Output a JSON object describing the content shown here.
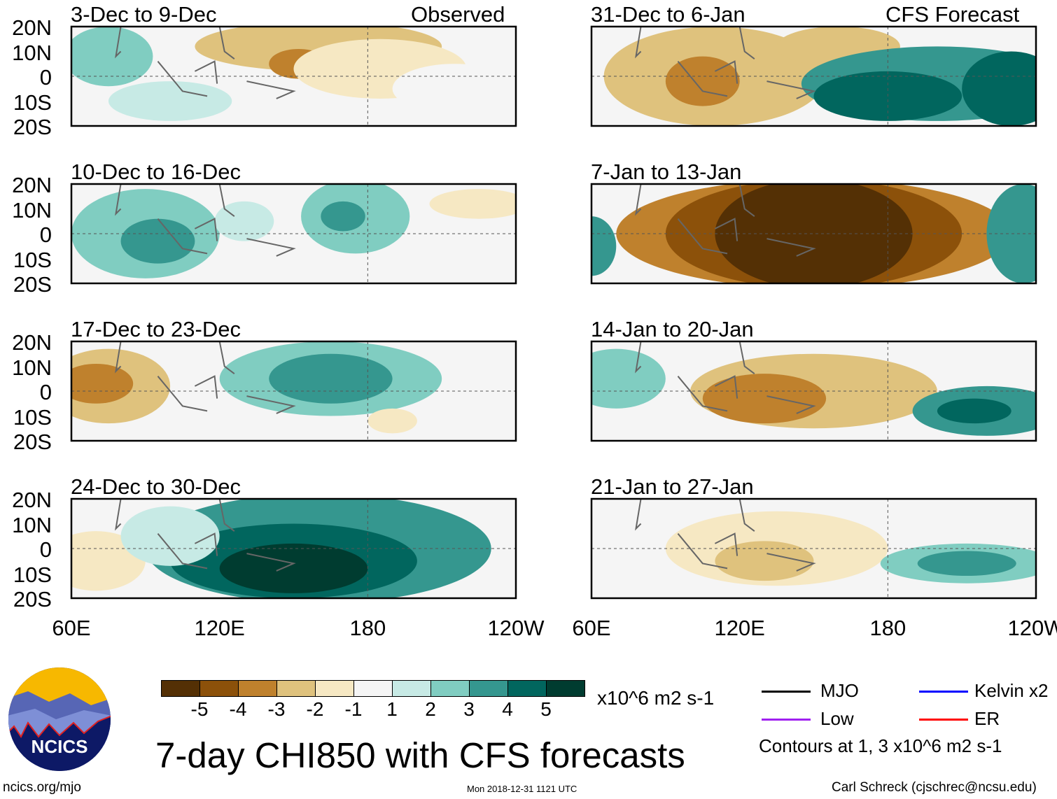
{
  "header": {
    "observed_label": "Observed",
    "forecast_label": "CFS Forecast"
  },
  "panels": [
    {
      "title": "3-Dec to 9-Dec",
      "type": "observed"
    },
    {
      "title": "10-Dec to 16-Dec",
      "type": "observed"
    },
    {
      "title": "17-Dec to 23-Dec",
      "type": "observed"
    },
    {
      "title": "24-Dec to 30-Dec",
      "type": "observed"
    },
    {
      "title": "31-Dec to 6-Jan",
      "type": "forecast"
    },
    {
      "title": "7-Jan to 13-Jan",
      "type": "forecast"
    },
    {
      "title": "14-Jan to 20-Jan",
      "type": "forecast"
    },
    {
      "title": "21-Jan to 27-Jan",
      "type": "forecast"
    }
  ],
  "axes": {
    "lat_labels": [
      "20N",
      "10N",
      "0",
      "10S",
      "20S"
    ],
    "lon_labels": [
      "60E",
      "120E",
      "180",
      "120W"
    ]
  },
  "colorbar": {
    "colors": [
      "#543005",
      "#8c510a",
      "#bf812d",
      "#dfc27d",
      "#f6e8c3",
      "#f5f5f5",
      "#c7eae5",
      "#80cdc1",
      "#35978f",
      "#01665e",
      "#003c30"
    ],
    "labels": [
      "-5",
      "-4",
      "-3",
      "-2",
      "-1",
      "1",
      "2",
      "3",
      "4",
      "5"
    ],
    "units": "x10^6 m2 s-1"
  },
  "legend": {
    "items": [
      {
        "label": "MJO",
        "color": "#000000"
      },
      {
        "label": "Kelvin x2",
        "color": "#0000ff"
      },
      {
        "label": "Low",
        "color": "#a020f0"
      },
      {
        "label": "ER",
        "color": "#ff0000"
      }
    ],
    "note": "Contours at 1, 3 x10^6 m2 s-1"
  },
  "title": "7-day CHI850 with CFS forecasts",
  "logo": {
    "text": "NCICS"
  },
  "footer": {
    "url": "ncics.org/mjo",
    "timestamp": "Mon 2018-12-31 1121 UTC",
    "author": "Carl Schreck (cjschrec@ncsu.edu)"
  }
}
